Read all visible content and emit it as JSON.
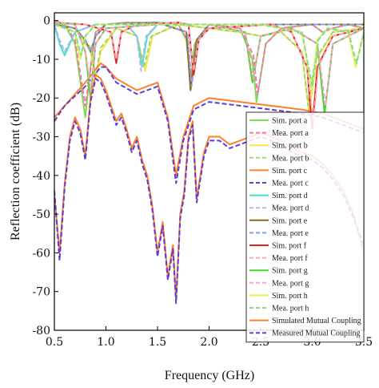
{
  "chart_data": {
    "type": "line",
    "xlabel": "Frequency (GHz)",
    "ylabel": "Reflection coefficient (dB)",
    "xlim": [
      0.5,
      3.5
    ],
    "ylim": [
      -80,
      2
    ],
    "xticks": [
      0.5,
      1.0,
      1.5,
      2.0,
      2.5,
      3.0,
      3.5
    ],
    "xtick_labels": [
      "0.5",
      "1.0",
      "1.5",
      "2.0",
      "2.5",
      "3.0",
      "3.5"
    ],
    "yticks": [
      0,
      -10,
      -20,
      -30,
      -40,
      -50,
      -60,
      -70,
      -80
    ],
    "ytick_labels": [
      "0",
      "-10",
      "-20",
      "-30",
      "-40",
      "-50",
      "-60",
      "-70",
      "-80"
    ],
    "grid": false,
    "legend_position": "right",
    "series": [
      {
        "name": "Sim. port a",
        "color": "#7ed957",
        "dash": false,
        "x": [
          0.5,
          0.6,
          0.7,
          0.8,
          0.85,
          0.9,
          1.0,
          1.2,
          1.5,
          1.7,
          1.78,
          1.82,
          1.86,
          2.0,
          2.3,
          2.42,
          2.46,
          2.55,
          2.7,
          3.0,
          3.1,
          3.2,
          3.35,
          3.5
        ],
        "y": [
          0,
          -1,
          -6,
          -25,
          -12,
          -3,
          -1,
          -0.5,
          -0.5,
          -0.8,
          -5,
          -16,
          -6,
          -1,
          -2,
          -10,
          -21,
          -6,
          -2,
          -1,
          -3,
          -2,
          -1,
          -2
        ]
      },
      {
        "name": "Mea. port a",
        "color": "#ff6fae",
        "dash": true,
        "x": [
          0.5,
          0.6,
          0.7,
          0.8,
          0.86,
          0.9,
          1.0,
          1.2,
          1.5,
          1.7,
          1.79,
          1.83,
          1.87,
          2.0,
          2.3,
          2.43,
          2.47,
          2.55,
          2.7,
          3.0,
          3.1,
          3.2,
          3.35,
          3.5
        ],
        "y": [
          0,
          -1,
          -5,
          -22,
          -11,
          -3,
          -1,
          -0.5,
          -0.6,
          -0.9,
          -5,
          -15,
          -6,
          -1,
          -2,
          -9,
          -19,
          -6,
          -2,
          -1,
          -3,
          -2,
          -1,
          -2
        ]
      },
      {
        "name": "Sim. port b",
        "color": "#f5e642",
        "dash": false,
        "x": [
          0.5,
          0.7,
          0.85,
          0.9,
          0.95,
          1.1,
          1.3,
          1.38,
          1.45,
          1.7,
          2.0,
          2.3,
          2.5,
          2.7,
          2.9,
          2.97,
          3.04,
          3.2,
          3.5
        ],
        "y": [
          -0.5,
          -2,
          -8,
          -15,
          -8,
          -2,
          -4,
          -13,
          -4,
          -1,
          -2,
          -3,
          -4,
          -3,
          -8,
          -24,
          -10,
          -3,
          -2
        ]
      },
      {
        "name": "Mea. port b",
        "color": "#9bd96e",
        "dash": true,
        "x": [
          0.5,
          0.7,
          0.85,
          0.9,
          0.95,
          1.1,
          1.3,
          1.37,
          1.44,
          1.7,
          2.0,
          2.3,
          2.5,
          2.7,
          2.9,
          2.96,
          3.03,
          3.2,
          3.5
        ],
        "y": [
          -0.5,
          -2,
          -7,
          -14,
          -7,
          -2,
          -4,
          -12,
          -4,
          -1,
          -2,
          -3,
          -4,
          -3,
          -8,
          -22,
          -10,
          -3,
          -2
        ]
      },
      {
        "name": "Sim. port c",
        "color": "#ff7f2a",
        "dash": false,
        "x": [
          0.5,
          0.6,
          0.8,
          0.95,
          1.0,
          1.1,
          1.3,
          1.5,
          1.6,
          1.68,
          1.75,
          1.85,
          2.0,
          2.3,
          2.6,
          2.9,
          3.1,
          3.3,
          3.5
        ],
        "y": [
          -25,
          -22,
          -16,
          -11,
          -12,
          -15,
          -18,
          -16,
          -25,
          -40,
          -30,
          -22,
          -20,
          -21,
          -22,
          -23,
          -24,
          -26,
          -28
        ]
      },
      {
        "name": "Mea. port c",
        "color": "#5a3fd6",
        "dash": true,
        "x": [
          0.5,
          0.6,
          0.8,
          0.95,
          1.0,
          1.1,
          1.3,
          1.5,
          1.6,
          1.68,
          1.75,
          1.85,
          2.0,
          2.3,
          2.6,
          2.9,
          3.1,
          3.3,
          3.5
        ],
        "y": [
          -26,
          -22,
          -17,
          -12,
          -12,
          -16,
          -19,
          -17,
          -26,
          -42,
          -31,
          -23,
          -21,
          -22,
          -23,
          -24,
          -25,
          -27,
          -29
        ]
      },
      {
        "name": "Sim. port d",
        "color": "#3ce6c4",
        "dash": false,
        "x": [
          0.5,
          0.55,
          0.6,
          0.7,
          0.9,
          1.2,
          1.3,
          1.35,
          1.4,
          1.5,
          2.0,
          2.5,
          3.0,
          3.5
        ],
        "y": [
          -1,
          -6,
          -9,
          -3,
          -1,
          -1,
          -4,
          -12,
          -4,
          -1,
          -1,
          -1,
          -1,
          -1
        ]
      },
      {
        "name": "Mea. port d",
        "color": "#b9b0f2",
        "dash": true,
        "x": [
          0.5,
          0.55,
          0.6,
          0.7,
          0.9,
          1.2,
          1.3,
          1.34,
          1.39,
          1.5,
          2.0,
          2.5,
          3.0,
          3.5
        ],
        "y": [
          -1,
          -5,
          -8,
          -3,
          -1,
          -1,
          -4,
          -13,
          -4,
          -1,
          -1,
          -1,
          -1,
          -1
        ]
      },
      {
        "name": "Sim. port e",
        "color": "#8a6d1a",
        "dash": false,
        "x": [
          0.5,
          0.7,
          0.8,
          0.85,
          0.9,
          1.0,
          1.5,
          1.78,
          1.82,
          1.88,
          2.0,
          2.5,
          3.0,
          3.5
        ],
        "y": [
          -1,
          -2,
          -5,
          -8,
          -4,
          -1,
          -0.5,
          -3,
          -18,
          -5,
          -1,
          -1,
          -1,
          -1
        ]
      },
      {
        "name": "Mea. port e",
        "color": "#8aa0e8",
        "dash": true,
        "x": [
          0.5,
          0.7,
          0.8,
          0.85,
          0.9,
          1.0,
          1.5,
          1.79,
          1.83,
          1.89,
          2.0,
          2.5,
          3.0,
          3.5
        ],
        "y": [
          -1,
          -2,
          -5,
          -8,
          -4,
          -1,
          -0.5,
          -3,
          -17,
          -5,
          -1,
          -1,
          -1,
          -1
        ]
      },
      {
        "name": "Sim. port f",
        "color": "#d62828",
        "dash": false,
        "x": [
          0.5,
          0.8,
          1.05,
          1.1,
          1.15,
          1.3,
          1.7,
          1.8,
          1.85,
          1.9,
          2.0,
          2.6,
          2.8,
          2.95,
          3.0,
          3.05,
          3.2,
          3.5
        ],
        "y": [
          -0.5,
          -1,
          -3,
          -11,
          -3,
          -1,
          -0.5,
          -1,
          -14,
          -5,
          -2,
          -1,
          -3,
          -12,
          -28,
          -12,
          -4,
          -2
        ]
      },
      {
        "name": "Mea. port f",
        "color": "#ffa6a6",
        "dash": true,
        "x": [
          0.5,
          0.8,
          1.05,
          1.1,
          1.15,
          1.3,
          1.7,
          1.8,
          1.85,
          1.9,
          2.0,
          2.6,
          2.8,
          2.95,
          3.01,
          3.06,
          3.2,
          3.5
        ],
        "y": [
          -0.5,
          -1,
          -3,
          -10,
          -3,
          -1,
          -0.5,
          -1,
          -13,
          -5,
          -2,
          -1,
          -3,
          -12,
          -26,
          -12,
          -4,
          -2
        ]
      },
      {
        "name": "Sim. port g",
        "color": "#44d62c",
        "dash": false,
        "x": [
          0.5,
          0.7,
          0.8,
          0.85,
          0.9,
          1.0,
          1.5,
          2.0,
          2.35,
          2.42,
          2.5,
          2.8,
          3.05,
          3.12,
          3.2,
          3.5
        ],
        "y": [
          -0.5,
          -1,
          -8,
          -20,
          -6,
          -2,
          -1,
          -1,
          -3,
          -16,
          -4,
          -2,
          -6,
          -24,
          -6,
          -2
        ]
      },
      {
        "name": "Mea. port g",
        "color": "#ff9ecf",
        "dash": true,
        "x": [
          0.5,
          0.7,
          0.8,
          0.86,
          0.9,
          1.0,
          1.5,
          2.0,
          2.35,
          2.43,
          2.5,
          2.8,
          3.05,
          3.13,
          3.2,
          3.5
        ],
        "y": [
          -0.5,
          -1,
          -8,
          -19,
          -6,
          -2,
          -1,
          -1,
          -3,
          -15,
          -4,
          -2,
          -6,
          -22,
          -6,
          -2
        ]
      },
      {
        "name": "Sim. port h",
        "color": "#e6f04a",
        "dash": false,
        "x": [
          0.5,
          0.7,
          0.75,
          0.8,
          0.9,
          1.5,
          2.0,
          2.5,
          2.9,
          3.0,
          3.05,
          3.15,
          3.35,
          3.42,
          3.5
        ],
        "y": [
          -1,
          -3,
          -10,
          -4,
          -1,
          -1,
          -1,
          -1,
          -3,
          -18,
          -5,
          -2,
          -3,
          -12,
          -3
        ]
      },
      {
        "name": "Mea. port h",
        "color": "#7fdc8f",
        "dash": true,
        "x": [
          0.5,
          0.7,
          0.76,
          0.8,
          0.9,
          1.5,
          2.0,
          2.5,
          2.9,
          3.0,
          3.06,
          3.15,
          3.35,
          3.43,
          3.5
        ],
        "y": [
          -1,
          -3,
          -9,
          -4,
          -1,
          -1,
          -1,
          -1,
          -3,
          -17,
          -5,
          -2,
          -3,
          -11,
          -3
        ]
      },
      {
        "name": "Simulated Mutual Coupling",
        "color": "#ff7f2a",
        "dash": false,
        "x": [
          0.5,
          0.55,
          0.6,
          0.65,
          0.7,
          0.75,
          0.8,
          0.85,
          0.9,
          0.95,
          1.0,
          1.05,
          1.1,
          1.15,
          1.2,
          1.25,
          1.3,
          1.35,
          1.4,
          1.45,
          1.5,
          1.55,
          1.6,
          1.65,
          1.68,
          1.72,
          1.76,
          1.8,
          1.84,
          1.88,
          1.95,
          2.0,
          2.1,
          2.2,
          2.3,
          2.4,
          2.5,
          2.6,
          2.7,
          2.8,
          2.9,
          3.0,
          3.1,
          3.2,
          3.3,
          3.4,
          3.5
        ],
        "y": [
          -45,
          -60,
          -42,
          -30,
          -25,
          -28,
          -35,
          -20,
          -14,
          -15,
          -18,
          -22,
          -26,
          -24,
          -28,
          -33,
          -30,
          -36,
          -40,
          -48,
          -60,
          -52,
          -66,
          -58,
          -72,
          -50,
          -44,
          -30,
          -26,
          -46,
          -34,
          -30,
          -30,
          -32,
          -31,
          -30,
          -29,
          -30,
          -31,
          -33,
          -34,
          -35,
          -37,
          -40,
          -44,
          -50,
          -60
        ]
      },
      {
        "name": "Measured Mutual Coupling",
        "color": "#5a3fd6",
        "dash": true,
        "x": [
          0.5,
          0.55,
          0.6,
          0.65,
          0.7,
          0.75,
          0.8,
          0.85,
          0.9,
          0.95,
          1.0,
          1.05,
          1.1,
          1.15,
          1.2,
          1.25,
          1.3,
          1.35,
          1.4,
          1.45,
          1.5,
          1.55,
          1.6,
          1.65,
          1.68,
          1.72,
          1.76,
          1.8,
          1.84,
          1.88,
          1.95,
          2.0,
          2.1,
          2.2,
          2.3,
          2.4,
          2.5,
          2.6,
          2.7,
          2.8,
          2.9,
          3.0,
          3.1,
          3.2,
          3.3,
          3.4,
          3.5
        ],
        "y": [
          -44,
          -62,
          -43,
          -31,
          -26,
          -29,
          -36,
          -21,
          -15,
          -16,
          -19,
          -23,
          -27,
          -25,
          -29,
          -34,
          -31,
          -37,
          -41,
          -49,
          -61,
          -53,
          -67,
          -59,
          -73,
          -51,
          -45,
          -31,
          -27,
          -47,
          -35,
          -31,
          -31,
          -33,
          -32,
          -31,
          -30,
          -31,
          -32,
          -34,
          -35,
          -36,
          -38,
          -41,
          -45,
          -51,
          -58
        ]
      }
    ]
  }
}
